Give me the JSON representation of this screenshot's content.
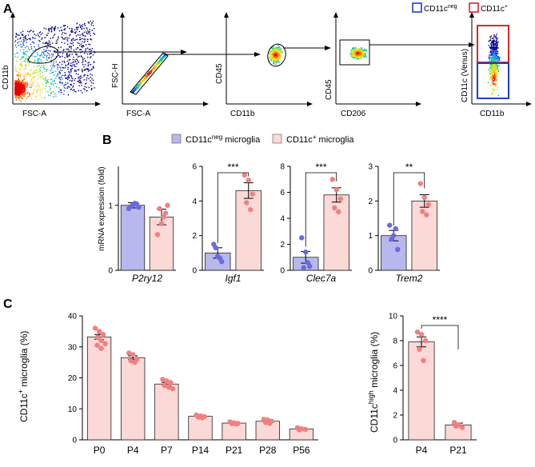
{
  "panel_a": {
    "letter": "A",
    "legend": {
      "neg_main": "CD11c",
      "neg_sup": "neg",
      "pos_main": "CD11c",
      "pos_sup": "+"
    },
    "plots": [
      {
        "xlabel": "FSC-A",
        "ylabel": "CD11b"
      },
      {
        "xlabel": "FSC-A",
        "ylabel": "FSC-H"
      },
      {
        "xlabel": "CD11b",
        "ylabel": "CD45"
      },
      {
        "xlabel": "CD206",
        "ylabel": "CD45"
      },
      {
        "xlabel": "CD11b",
        "ylabel": "CD11c (Venus)"
      }
    ]
  },
  "panel_b": {
    "letter": "B",
    "legend": [
      {
        "main": "CD11c",
        "sup": "neg",
        "rest": " microglia"
      },
      {
        "main": "CD11c",
        "sup": "+",
        "rest": " microglia"
      }
    ],
    "ylabel": "mRNA expression (fold)"
  },
  "panel_c": {
    "letter": "C",
    "left_ylabel": {
      "main": "CD11c",
      "sup": "+",
      "rest": " microglia (%)"
    },
    "right_ylabel": {
      "main": "CD11c",
      "sup": "high",
      "rest": " microglia (%)"
    }
  },
  "colors": {
    "neg_fill": "#b8b8ef",
    "neg_dot": "#6a6ae0",
    "pos_fill": "#fbd9d7",
    "pos_dot": "#f08080",
    "gate_blue": "#1f3fc8",
    "gate_red": "#d42a2a"
  },
  "chart_data": [
    {
      "type": "bar",
      "title": "P2ry12",
      "ylabel": "mRNA expression (fold)",
      "ylim": [
        0,
        1.6
      ],
      "yticks": [
        0,
        1
      ],
      "categories": [
        "CD11cneg microglia",
        "CD11c+ microglia"
      ],
      "values": [
        1.0,
        0.82
      ],
      "errors": [
        0.04,
        0.12
      ],
      "points": [
        [
          0.95,
          1.0,
          1.02,
          0.98,
          1.03,
          0.97
        ],
        [
          0.55,
          0.72,
          0.88,
          0.95,
          0.82,
          1.0
        ]
      ],
      "significance": ""
    },
    {
      "type": "bar",
      "title": "Igf1",
      "ylabel": "mRNA expression (fold)",
      "ylim": [
        0,
        6
      ],
      "yticks": [
        0,
        2,
        4,
        6
      ],
      "categories": [
        "CD11cneg microglia",
        "CD11c+ microglia"
      ],
      "values": [
        1.0,
        4.6
      ],
      "errors": [
        0.3,
        0.45
      ],
      "points": [
        [
          1.5,
          0.8,
          0.5,
          1.3,
          0.7
        ],
        [
          5.5,
          5.2,
          4.4,
          3.9,
          3.5
        ]
      ],
      "significance": "***"
    },
    {
      "type": "bar",
      "title": "Clec7a",
      "ylabel": "mRNA expression (fold)",
      "ylim": [
        0,
        8
      ],
      "yticks": [
        0,
        2,
        4,
        6,
        8
      ],
      "categories": [
        "CD11cneg microglia",
        "CD11c+ microglia"
      ],
      "values": [
        1.0,
        5.8
      ],
      "errors": [
        0.45,
        0.55
      ],
      "points": [
        [
          2.5,
          1.4,
          0.3,
          0.2,
          0.6
        ],
        [
          7.0,
          6.2,
          5.5,
          4.8,
          4.5
        ]
      ],
      "significance": "***"
    },
    {
      "type": "bar",
      "title": "Trem2",
      "ylabel": "mRNA expression (fold)",
      "ylim": [
        0,
        3
      ],
      "yticks": [
        0,
        1,
        2,
        3
      ],
      "categories": [
        "CD11cneg microglia",
        "CD11c+ microglia"
      ],
      "values": [
        1.0,
        2.0
      ],
      "errors": [
        0.15,
        0.18
      ],
      "points": [
        [
          1.3,
          1.0,
          0.6,
          0.9,
          1.2
        ],
        [
          2.5,
          2.1,
          1.9,
          1.7,
          1.6
        ]
      ],
      "significance": "**"
    },
    {
      "type": "bar",
      "title": "",
      "ylabel": "CD11c+ microglia (%)",
      "ylim": [
        0,
        40
      ],
      "yticks": [
        0,
        10,
        20,
        30,
        40
      ],
      "categories": [
        "P0",
        "P4",
        "P7",
        "P14",
        "P21",
        "P28",
        "P56"
      ],
      "values": [
        33.2,
        26.5,
        18.0,
        7.6,
        5.4,
        6.0,
        3.5
      ],
      "errors": [
        0.8,
        0.6,
        0.5,
        0.2,
        0.2,
        0.3,
        0.2
      ],
      "points": [
        [
          36,
          35,
          34,
          33,
          32,
          31,
          30.5,
          29.5
        ],
        [
          28,
          27.5,
          26,
          25.5,
          25
        ],
        [
          19.5,
          19,
          18.5,
          17.5,
          17,
          16.5
        ],
        [
          8,
          7.7,
          7.5,
          7.3,
          7.1
        ],
        [
          5.8,
          5.5,
          5.3,
          5.2,
          5.1
        ],
        [
          6.6,
          6.4,
          6,
          5.6,
          5.3
        ],
        [
          3.9,
          3.6,
          3.4,
          3.2
        ]
      ],
      "significance": ""
    },
    {
      "type": "bar",
      "title": "",
      "ylabel": "CD11chigh microglia (%)",
      "ylim": [
        0,
        10
      ],
      "yticks": [
        0,
        2,
        4,
        6,
        8,
        10
      ],
      "categories": [
        "P4",
        "P21"
      ],
      "values": [
        7.9,
        1.2
      ],
      "errors": [
        0.4,
        0.15
      ],
      "points": [
        [
          8.7,
          8.5,
          8.0,
          7.3,
          6.4
        ],
        [
          1.4,
          1.2,
          1.0,
          1.1
        ]
      ],
      "significance": "****"
    }
  ]
}
